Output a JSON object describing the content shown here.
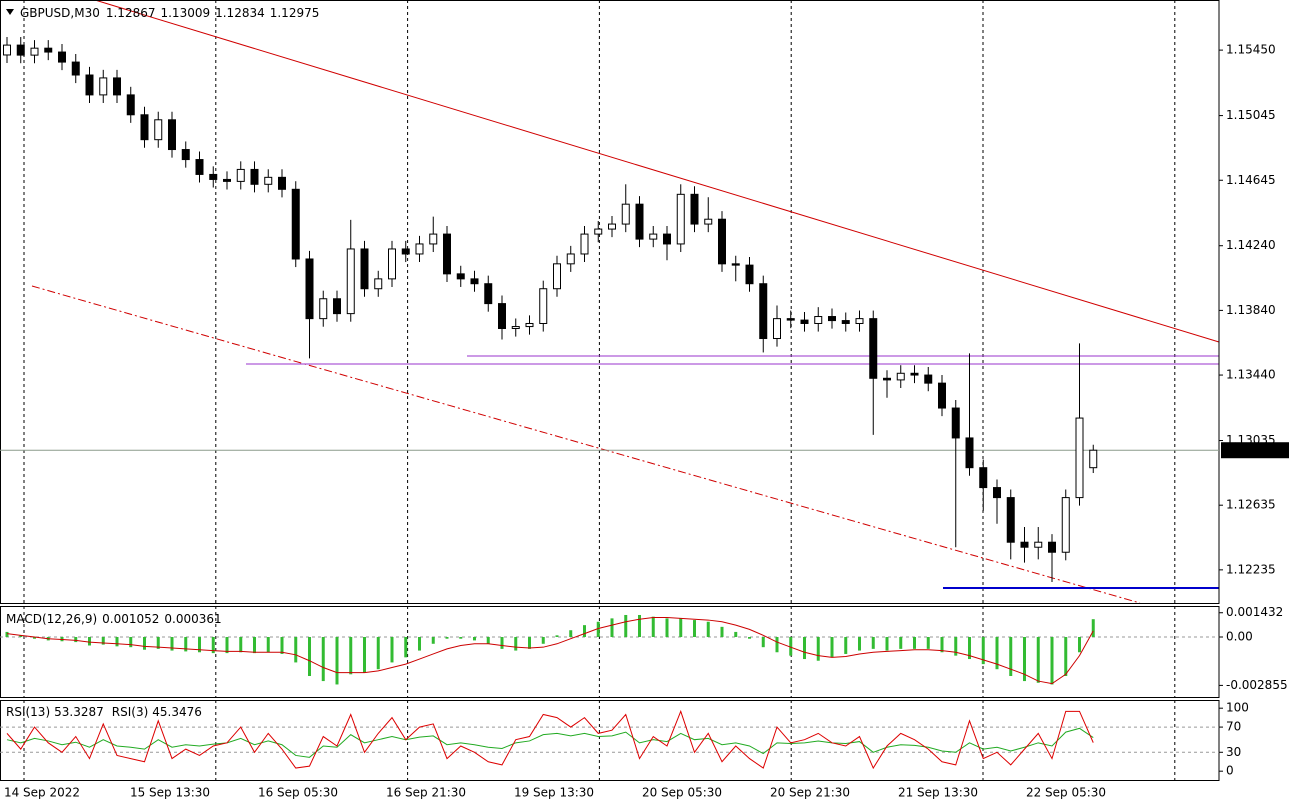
{
  "chart_data": [
    {
      "type": "candlestick",
      "title": "GBPUSD,M30",
      "up_color": "#ffffff",
      "down_color": "#000000",
      "wick_color": "#000000",
      "ylim": [
        1.1203,
        1.1576
      ],
      "yticks": [
        {
          "value": 1.1545,
          "label": "1.15450"
        },
        1.15045,
        1.14645,
        {
          "value": 1.1424,
          "label": "1.14240"
        },
        {
          "value": 1.1384,
          "label": "1.13840"
        },
        {
          "value": 1.1344,
          "label": "1.13440"
        },
        1.13035,
        1.12635,
        1.12235
      ],
      "time_labels": [
        "14 Sep 2022",
        "15 Sep 13:30",
        "16 Sep 05:30",
        "16 Sep 21:30",
        "19 Sep 13:30",
        "20 Sep 05:30",
        "20 Sep 21:30",
        "21 Sep 13:30",
        "22 Sep 05:30"
      ],
      "open": [
        1.1542,
        1.15481,
        1.15419,
        1.15462,
        1.15438,
        1.15376,
        1.15296,
        1.15173,
        1.15278,
        1.15173,
        1.1505,
        1.14896,
        1.15019,
        1.14835,
        1.14773,
        1.14681,
        1.1465,
        1.14638,
        1.14712,
        1.1462,
        1.14663,
        1.14589,
        1.14158,
        1.13789,
        1.13912,
        1.1382,
        1.1422,
        1.13974,
        1.14035,
        1.1422,
        1.14189,
        1.14251,
        1.14312,
        1.14066,
        1.14035,
        1.14005,
        1.13882,
        1.13728,
        1.1374,
        1.13759,
        1.13974,
        1.14128,
        1.14189,
        1.14312,
        1.14343,
        1.14374,
        1.14497,
        1.14281,
        1.14312,
        1.14251,
        1.14558,
        1.14374,
        1.14404,
        1.14128,
        1.1412,
        1.14005,
        1.13666,
        1.13789,
        1.1378,
        1.13759,
        1.13802,
        1.13777,
        1.13759,
        1.13789,
        1.1342,
        1.1341,
        1.13451,
        1.1344,
        1.1339,
        1.13236,
        1.13051,
        1.12867,
        1.12744,
        1.12682,
        1.12406,
        1.12375,
        1.12406,
        1.12344,
        1.12682,
        1.12867
      ],
      "high": [
        1.15531,
        1.15531,
        1.15512,
        1.15512,
        1.15488,
        1.15426,
        1.15346,
        1.15328,
        1.15328,
        1.15223,
        1.151,
        1.15069,
        1.15069,
        1.14885,
        1.14823,
        1.14731,
        1.147,
        1.14762,
        1.14762,
        1.14713,
        1.14713,
        1.14639,
        1.14208,
        1.13962,
        1.13962,
        1.144,
        1.1427,
        1.14085,
        1.1427,
        1.1427,
        1.14301,
        1.1442,
        1.14362,
        1.14116,
        1.14085,
        1.14055,
        1.13932,
        1.1379,
        1.13809,
        1.14024,
        1.14178,
        1.14239,
        1.14362,
        1.14393,
        1.14424,
        1.1462,
        1.14547,
        1.14362,
        1.14362,
        1.1462,
        1.14608,
        1.1454,
        1.14454,
        1.14178,
        1.1417,
        1.14055,
        1.1387,
        1.13839,
        1.1383,
        1.1386,
        1.13852,
        1.13827,
        1.13839,
        1.13839,
        1.1347,
        1.13501,
        1.13501,
        1.1349,
        1.1344,
        1.13286,
        1.13574,
        1.12917,
        1.12794,
        1.12732,
        1.125,
        1.125,
        1.12456,
        1.12732,
        1.13636,
        1.13009
      ],
      "low": [
        1.1537,
        1.15369,
        1.15369,
        1.15388,
        1.15326,
        1.15246,
        1.15123,
        1.15123,
        1.15123,
        1.15,
        1.14846,
        1.14846,
        1.14785,
        1.14723,
        1.14631,
        1.146,
        1.14588,
        1.14588,
        1.1457,
        1.1457,
        1.14539,
        1.14108,
        1.13543,
        1.13739,
        1.1377,
        1.1377,
        1.13924,
        1.13924,
        1.13985,
        1.14139,
        1.14139,
        1.14201,
        1.14016,
        1.13985,
        1.13955,
        1.13832,
        1.1366,
        1.13678,
        1.1369,
        1.13709,
        1.13924,
        1.14078,
        1.14139,
        1.14262,
        1.14293,
        1.14324,
        1.14231,
        1.14231,
        1.1415,
        1.14201,
        1.14324,
        1.14324,
        1.14078,
        1.1402,
        1.13955,
        1.1358,
        1.13616,
        1.1373,
        1.13709,
        1.13709,
        1.13727,
        1.13709,
        1.13709,
        1.1307,
        1.133,
        1.1336,
        1.1339,
        1.1334,
        1.13186,
        1.12375,
        1.12817,
        1.126,
        1.1252,
        1.123,
        1.1228,
        1.123,
        1.1216,
        1.12294,
        1.12632,
        1.12834
      ],
      "close": [
        1.15481,
        1.15419,
        1.15462,
        1.15438,
        1.15376,
        1.15296,
        1.15173,
        1.15278,
        1.15173,
        1.1505,
        1.14896,
        1.15019,
        1.14835,
        1.14773,
        1.14681,
        1.1465,
        1.14638,
        1.14712,
        1.1462,
        1.14663,
        1.14589,
        1.14158,
        1.13789,
        1.13912,
        1.1382,
        1.1422,
        1.13974,
        1.14035,
        1.1422,
        1.14189,
        1.14251,
        1.14312,
        1.14066,
        1.14035,
        1.14005,
        1.13882,
        1.13728,
        1.1374,
        1.13759,
        1.13974,
        1.14128,
        1.14189,
        1.14312,
        1.14343,
        1.14374,
        1.14497,
        1.14281,
        1.14312,
        1.14251,
        1.14558,
        1.14374,
        1.14404,
        1.14128,
        1.1412,
        1.14005,
        1.13666,
        1.13789,
        1.1378,
        1.13759,
        1.13802,
        1.13777,
        1.13759,
        1.13789,
        1.1342,
        1.1341,
        1.13451,
        1.1344,
        1.1339,
        1.13236,
        1.13051,
        1.12867,
        1.12744,
        1.12682,
        1.12406,
        1.12375,
        1.12406,
        1.12344,
        1.12682,
        1.13174,
        1.12975
      ]
    },
    {
      "type": "macd",
      "title": "MACD(12,26,9)",
      "ylim": [
        -0.00354,
        0.00183
      ],
      "yticks": [
        0.001432,
        {
          "value": 0,
          "label": "0.00"
        },
        -0.002855
      ],
      "levels": [
        0
      ],
      "histogram": {
        "color": "#33bb33",
        "values": [
          0.0003,
          0.0001,
          -0.0001,
          -0.0002,
          -0.00025,
          -0.0003,
          -0.0005,
          -0.00045,
          -0.00055,
          -0.0006,
          -0.00075,
          -0.0007,
          -0.0008,
          -0.00085,
          -0.0009,
          -0.00095,
          -0.00095,
          -0.0009,
          -0.00095,
          -0.0009,
          -0.001,
          -0.0015,
          -0.0023,
          -0.0026,
          -0.0028,
          -0.0022,
          -0.0021,
          -0.0019,
          -0.0015,
          -0.0012,
          -0.0008,
          -0.0004,
          -0.0001,
          -0.0001,
          -0.0002,
          -0.0004,
          -0.0007,
          -0.0008,
          -0.0007,
          -0.0004,
          0.0001,
          0.0004,
          0.0007,
          0.0009,
          0.0011,
          0.0013,
          0.0013,
          0.0012,
          0.0011,
          0.0011,
          0.001,
          0.0009,
          0.0006,
          0.0003,
          -0.0001,
          -0.0006,
          -0.0009,
          -0.0011,
          -0.0013,
          -0.0014,
          -0.0012,
          -0.001,
          -0.0008,
          -0.0007,
          -0.0008,
          -0.0007,
          -0.0007,
          -0.0007,
          -0.0009,
          -0.0011,
          -0.0013,
          -0.0016,
          -0.0019,
          -0.0023,
          -0.0026,
          -0.0027,
          -0.0028,
          -0.0023,
          -0.0009,
          0.001052
        ]
      },
      "signal": {
        "color": "#cc0000",
        "values": [
          0.0002,
          0.0001,
          0,
          -0.0001,
          -0.00015,
          -0.0002,
          -0.0003,
          -0.00035,
          -0.0004,
          -0.00045,
          -0.00055,
          -0.0006,
          -0.00065,
          -0.0007,
          -0.00075,
          -0.0008,
          -0.00085,
          -0.00085,
          -0.0009,
          -0.0009,
          -0.0009,
          -0.00105,
          -0.0014,
          -0.0018,
          -0.0021,
          -0.0021,
          -0.0021,
          -0.002,
          -0.0018,
          -0.0016,
          -0.0013,
          -0.001,
          -0.0007,
          -0.0005,
          -0.0004,
          -0.0004,
          -0.0005,
          -0.0006,
          -0.00065,
          -0.0006,
          -0.0004,
          -0.0001,
          0.0002,
          0.0005,
          0.0007,
          0.0009,
          0.00105,
          0.00115,
          0.00115,
          0.0011,
          0.00105,
          0.001,
          0.0009,
          0.0007,
          0.00045,
          0.0001,
          -0.0003,
          -0.0006,
          -0.0009,
          -0.0011,
          -0.0012,
          -0.00115,
          -0.001,
          -0.0009,
          -0.00085,
          -0.0008,
          -0.00075,
          -0.00075,
          -0.0008,
          -0.0009,
          -0.0011,
          -0.00135,
          -0.0016,
          -0.0019,
          -0.0022,
          -0.0026,
          -0.00275,
          -0.0022,
          -0.0011,
          0.000361
        ]
      }
    },
    {
      "type": "rsi",
      "ylim": [
        -14,
        113
      ],
      "yticks": [
        100,
        70,
        30,
        0
      ],
      "levels": [
        70,
        30
      ],
      "series": [
        {
          "name": "RSI(13)",
          "color": "#22aa22",
          "values": [
            50,
            45,
            52,
            48,
            42,
            46,
            38,
            50,
            40,
            38,
            35,
            50,
            38,
            42,
            40,
            43,
            45,
            52,
            42,
            48,
            42,
            25,
            22,
            40,
            38,
            58,
            45,
            50,
            55,
            50,
            54,
            56,
            42,
            45,
            42,
            38,
            36,
            45,
            48,
            58,
            60,
            56,
            60,
            55,
            56,
            62,
            45,
            50,
            47,
            60,
            50,
            52,
            42,
            45,
            40,
            28,
            45,
            44,
            45,
            48,
            45,
            44,
            47,
            30,
            38,
            42,
            41,
            38,
            32,
            30,
            45,
            35,
            38,
            32,
            38,
            45,
            40,
            62,
            68,
            53.3287
          ]
        },
        {
          "name": "RSI(3)",
          "color": "#dd0000",
          "values": [
            60,
            35,
            70,
            45,
            30,
            55,
            20,
            75,
            25,
            20,
            15,
            80,
            20,
            35,
            25,
            40,
            45,
            70,
            30,
            60,
            35,
            5,
            8,
            55,
            40,
            90,
            30,
            60,
            85,
            50,
            70,
            75,
            20,
            40,
            30,
            15,
            10,
            50,
            55,
            90,
            85,
            70,
            85,
            60,
            65,
            90,
            20,
            55,
            40,
            95,
            30,
            60,
            15,
            40,
            20,
            5,
            70,
            45,
            50,
            60,
            45,
            40,
            55,
            5,
            40,
            60,
            50,
            35,
            15,
            10,
            80,
            20,
            30,
            10,
            35,
            60,
            20,
            95,
            95,
            45.3476
          ]
        }
      ]
    }
  ]
}
